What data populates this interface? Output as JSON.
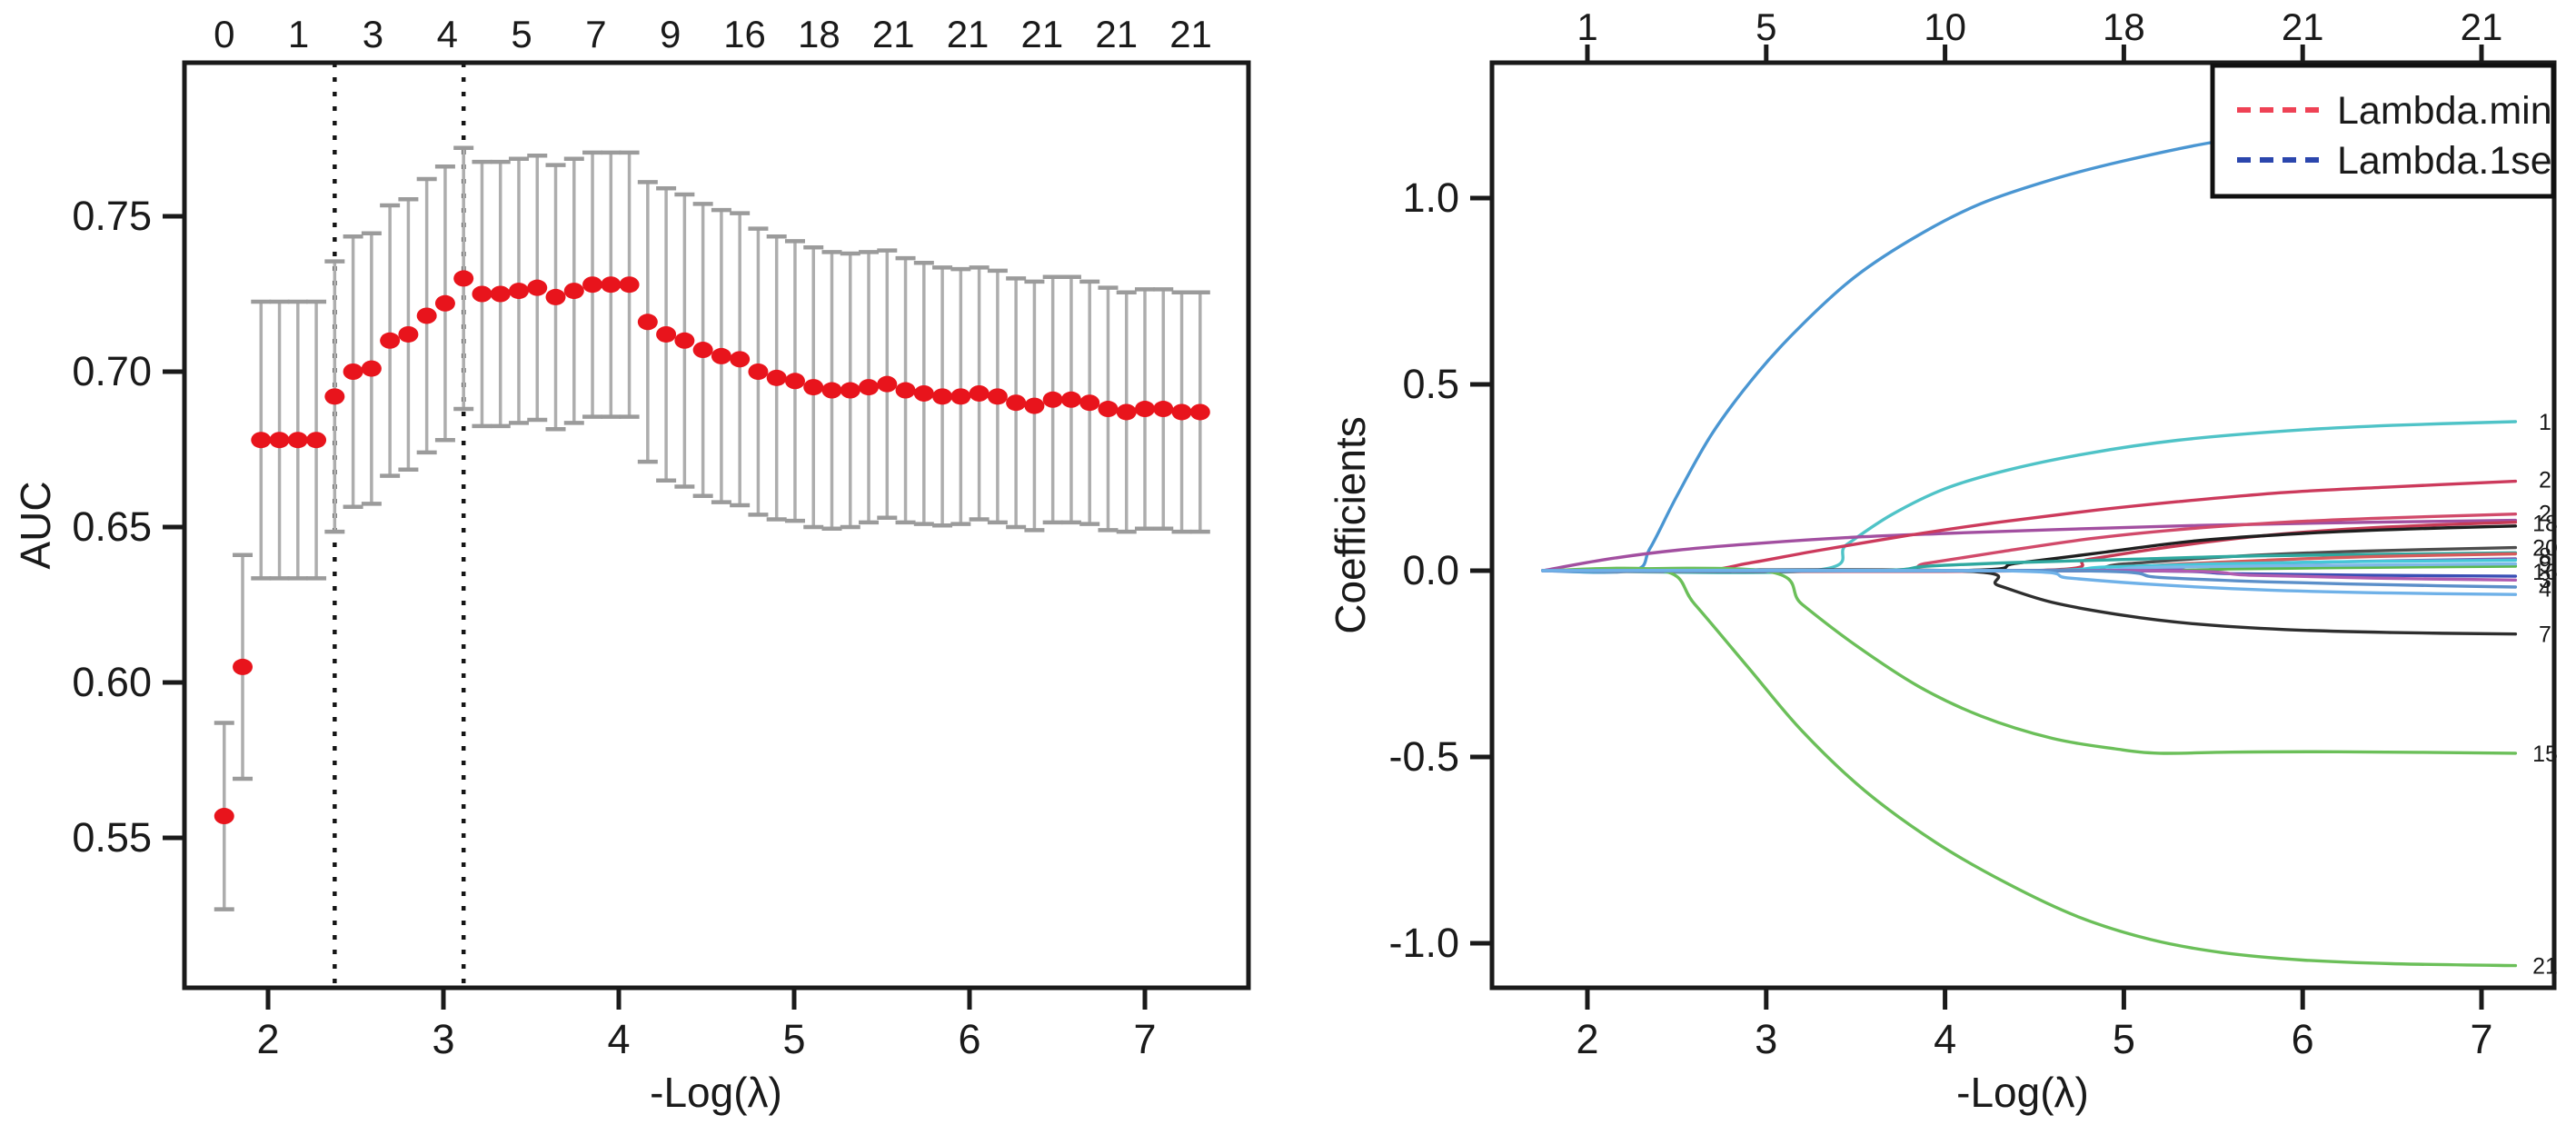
{
  "figure": {
    "background": "#ffffff"
  },
  "chart_data": [
    {
      "type": "scatter",
      "subtype": "errorbar-cv-curve",
      "panel": "left",
      "title": "",
      "xlabel": "-Log(λ)",
      "ylabel": "AUC",
      "x_ticks": [
        "2",
        "3",
        "4",
        "5",
        "6",
        "7"
      ],
      "x_tick_values": [
        2,
        3,
        4,
        5,
        6,
        7
      ],
      "y_ticks": [
        "0.55",
        "0.60",
        "0.65",
        "0.70",
        "0.75"
      ],
      "y_tick_values": [
        0.55,
        0.6,
        0.65,
        0.7,
        0.75
      ],
      "xlim": [
        1.52,
        7.6
      ],
      "ylim": [
        0.5015,
        0.799
      ],
      "top_axis_labels": [
        "0",
        "1",
        "3",
        "4",
        "5",
        "7",
        "9",
        "16",
        "18",
        "21",
        "21",
        "21",
        "21",
        "21"
      ],
      "top_axis_label_x": [
        1.75,
        2.174,
        2.598,
        3.022,
        3.446,
        3.87,
        4.294,
        4.718,
        5.142,
        5.566,
        5.99,
        6.414,
        6.838,
        7.262
      ],
      "vline_min_x": 2.38,
      "vline_1se_x": 3.115,
      "x_start": 1.75,
      "x_step": 0.105,
      "auc": [
        0.557,
        0.605,
        0.678,
        0.678,
        0.678,
        0.678,
        0.692,
        0.7,
        0.701,
        0.71,
        0.712,
        0.718,
        0.722,
        0.73,
        0.725,
        0.725,
        0.726,
        0.727,
        0.724,
        0.726,
        0.728,
        0.728,
        0.728,
        0.716,
        0.712,
        0.71,
        0.707,
        0.705,
        0.704,
        0.7,
        0.698,
        0.697,
        0.695,
        0.694,
        0.694,
        0.695,
        0.696,
        0.694,
        0.693,
        0.692,
        0.692,
        0.693,
        0.692,
        0.69,
        0.689,
        0.691,
        0.691,
        0.69,
        0.688,
        0.687,
        0.688,
        0.688,
        0.687,
        0.687
      ],
      "se": [
        0.03,
        0.036,
        0.0445,
        0.0445,
        0.0445,
        0.0445,
        0.0435,
        0.0435,
        0.0435,
        0.0435,
        0.0435,
        0.044,
        0.044,
        0.042,
        0.0425,
        0.0425,
        0.0425,
        0.0425,
        0.0425,
        0.0425,
        0.0425,
        0.0425,
        0.0425,
        0.045,
        0.047,
        0.047,
        0.047,
        0.047,
        0.047,
        0.046,
        0.0455,
        0.045,
        0.045,
        0.0445,
        0.044,
        0.0435,
        0.043,
        0.0425,
        0.042,
        0.0415,
        0.041,
        0.0405,
        0.0405,
        0.04,
        0.04,
        0.0395,
        0.0395,
        0.039,
        0.039,
        0.0385,
        0.0385,
        0.0385,
        0.0385,
        0.0385
      ],
      "point_color": "#e8141c",
      "errorbar_color": "#adadad",
      "cap_color": "#9b9b9b",
      "vline_color": "#151515",
      "grid": "off"
    },
    {
      "type": "line",
      "subtype": "coefficient-paths",
      "panel": "right",
      "title": "",
      "xlabel": "-Log(λ)",
      "ylabel": "Coefficients",
      "x_ticks": [
        "2",
        "3",
        "4",
        "5",
        "6",
        "7"
      ],
      "x_tick_values": [
        2,
        3,
        4,
        5,
        6,
        7
      ],
      "y_ticks": [
        "-1.0",
        "-0.5",
        "0.0",
        "0.5",
        "1.0"
      ],
      "y_tick_values": [
        -1.0,
        -0.5,
        0.0,
        0.5,
        1.0
      ],
      "xlim": [
        1.47,
        7.4
      ],
      "ylim": [
        -1.12,
        1.363
      ],
      "top_axis_labels": [
        "1",
        "5",
        "10",
        "18",
        "21",
        "21"
      ],
      "top_axis_label_x": [
        2,
        3,
        4,
        5,
        6,
        7
      ],
      "legend": {
        "position": "top-right",
        "items": [
          {
            "label": "Lambda.min",
            "color": "#ef4255",
            "dash": true
          },
          {
            "label": "Lambda.1se",
            "color": "#2b46ad",
            "dash": true
          }
        ]
      },
      "right_edge_labels": [
        {
          "text": "1",
          "y": 0.4
        },
        {
          "text": "2",
          "y": 0.245
        },
        {
          "text": "2",
          "y": 0.155
        },
        {
          "text": "18",
          "y": 0.128
        },
        {
          "text": "20",
          "y": 0.062
        },
        {
          "text": "8",
          "y": 0.04
        },
        {
          "text": "9",
          "y": 0.018
        },
        {
          "text": "16",
          "y": -0.002
        },
        {
          "text": "3",
          "y": -0.024
        },
        {
          "text": "4",
          "y": -0.048
        },
        {
          "text": "7",
          "y": -0.17
        },
        {
          "text": "15",
          "y": -0.49
        },
        {
          "text": "21",
          "y": -1.06
        }
      ],
      "series": [
        {
          "name": "s1-blue",
          "color": "#4a96d2",
          "points": [
            [
              1.75,
              0
            ],
            [
              2.25,
              0
            ],
            [
              2.35,
              0.06
            ],
            [
              2.5,
              0.2
            ],
            [
              2.7,
              0.37
            ],
            [
              2.95,
              0.53
            ],
            [
              3.2,
              0.66
            ],
            [
              3.5,
              0.79
            ],
            [
              3.85,
              0.9
            ],
            [
              4.2,
              0.985
            ],
            [
              4.6,
              1.05
            ],
            [
              5.0,
              1.1
            ],
            [
              5.5,
              1.15
            ],
            [
              6.0,
              1.18
            ],
            [
              6.5,
              1.195
            ],
            [
              7.19,
              1.205
            ]
          ]
        },
        {
          "name": "s2-cyan",
          "color": "#4fc3c7",
          "points": [
            [
              1.75,
              0
            ],
            [
              3.25,
              0
            ],
            [
              3.45,
              0.07
            ],
            [
              3.7,
              0.15
            ],
            [
              4.0,
              0.22
            ],
            [
              4.35,
              0.27
            ],
            [
              4.8,
              0.315
            ],
            [
              5.3,
              0.35
            ],
            [
              5.9,
              0.375
            ],
            [
              6.5,
              0.39
            ],
            [
              7.19,
              0.4
            ]
          ]
        },
        {
          "name": "s3-magenta",
          "color": "#a24fa0",
          "points": [
            [
              1.75,
              0
            ],
            [
              2.1,
              0.03
            ],
            [
              2.5,
              0.055
            ],
            [
              3.0,
              0.075
            ],
            [
              3.5,
              0.09
            ],
            [
              4.0,
              0.1
            ],
            [
              4.6,
              0.11
            ],
            [
              5.3,
              0.12
            ],
            [
              6.1,
              0.128
            ],
            [
              7.19,
              0.135
            ]
          ]
        },
        {
          "name": "s4-crimson",
          "color": "#cc3a5c",
          "points": [
            [
              1.75,
              0
            ],
            [
              2.6,
              0
            ],
            [
              2.9,
              0.02
            ],
            [
              3.3,
              0.055
            ],
            [
              3.8,
              0.095
            ],
            [
              4.3,
              0.13
            ],
            [
              4.8,
              0.16
            ],
            [
              5.3,
              0.185
            ],
            [
              5.9,
              0.21
            ],
            [
              6.5,
              0.225
            ],
            [
              7.19,
              0.24
            ]
          ]
        },
        {
          "name": "s5-crimson",
          "color": "#d14a6a",
          "points": [
            [
              1.75,
              0
            ],
            [
              3.6,
              0
            ],
            [
              3.9,
              0.02
            ],
            [
              4.3,
              0.05
            ],
            [
              4.8,
              0.085
            ],
            [
              5.3,
              0.11
            ],
            [
              5.9,
              0.13
            ],
            [
              6.5,
              0.142
            ],
            [
              7.19,
              0.152
            ]
          ]
        },
        {
          "name": "s6-crimson",
          "color": "#c63b55",
          "points": [
            [
              1.75,
              0
            ],
            [
              4.45,
              0
            ],
            [
              4.8,
              0.03
            ],
            [
              5.2,
              0.06
            ],
            [
              5.7,
              0.09
            ],
            [
              6.2,
              0.11
            ],
            [
              6.7,
              0.122
            ],
            [
              7.19,
              0.13
            ]
          ]
        },
        {
          "name": "s7-black",
          "color": "#2e2e2e",
          "points": [
            [
              1.75,
              0
            ],
            [
              4.05,
              0
            ],
            [
              4.3,
              -0.04
            ],
            [
              4.6,
              -0.085
            ],
            [
              5.0,
              -0.12
            ],
            [
              5.4,
              -0.143
            ],
            [
              5.9,
              -0.158
            ],
            [
              6.5,
              -0.166
            ],
            [
              7.19,
              -0.17
            ]
          ]
        },
        {
          "name": "s8-black",
          "color": "#1f1f1f",
          "points": [
            [
              1.75,
              0
            ],
            [
              4.05,
              0
            ],
            [
              4.4,
              0.02
            ],
            [
              4.9,
              0.05
            ],
            [
              5.4,
              0.08
            ],
            [
              6.0,
              0.1
            ],
            [
              6.6,
              0.112
            ],
            [
              7.19,
              0.12
            ]
          ]
        },
        {
          "name": "s9-gray",
          "color": "#4d4d4d",
          "points": [
            [
              1.75,
              0
            ],
            [
              4.5,
              0
            ],
            [
              5.0,
              0.018
            ],
            [
              5.6,
              0.038
            ],
            [
              6.3,
              0.052
            ],
            [
              7.19,
              0.062
            ]
          ]
        },
        {
          "name": "s10-green",
          "color": "#6bbf59",
          "points": [
            [
              1.75,
              0
            ],
            [
              2.42,
              0
            ],
            [
              2.6,
              -0.09
            ],
            [
              2.9,
              -0.26
            ],
            [
              3.2,
              -0.43
            ],
            [
              3.55,
              -0.59
            ],
            [
              3.95,
              -0.73
            ],
            [
              4.35,
              -0.84
            ],
            [
              4.75,
              -0.93
            ],
            [
              5.15,
              -0.99
            ],
            [
              5.55,
              -1.025
            ],
            [
              6.0,
              -1.045
            ],
            [
              6.5,
              -1.055
            ],
            [
              7.19,
              -1.06
            ]
          ]
        },
        {
          "name": "s11-green",
          "color": "#6bbf59",
          "points": [
            [
              1.75,
              0
            ],
            [
              2.98,
              0
            ],
            [
              3.2,
              -0.09
            ],
            [
              3.5,
              -0.2
            ],
            [
              3.85,
              -0.31
            ],
            [
              4.2,
              -0.39
            ],
            [
              4.6,
              -0.45
            ],
            [
              4.95,
              -0.478
            ],
            [
              5.2,
              -0.49
            ],
            [
              5.6,
              -0.487
            ],
            [
              6.2,
              -0.486
            ],
            [
              7.19,
              -0.49
            ]
          ]
        },
        {
          "name": "s12-green",
          "color": "#59b84d",
          "points": [
            [
              1.75,
              0
            ],
            [
              5.0,
              0
            ],
            [
              5.6,
              0.005
            ],
            [
              6.4,
              0.009
            ],
            [
              7.19,
              0.012
            ]
          ]
        },
        {
          "name": "s13-teal",
          "color": "#2fa89f",
          "points": [
            [
              1.75,
              0
            ],
            [
              3.55,
              0
            ],
            [
              3.9,
              0.012
            ],
            [
              4.4,
              0.022
            ],
            [
              5.0,
              0.03
            ],
            [
              5.8,
              0.04
            ],
            [
              7.19,
              0.048
            ]
          ]
        },
        {
          "name": "s14-red",
          "color": "#d65b5b",
          "points": [
            [
              1.75,
              0
            ],
            [
              4.75,
              0
            ],
            [
              5.2,
              0.015
            ],
            [
              5.8,
              0.028
            ],
            [
              6.4,
              0.038
            ],
            [
              7.19,
              0.045
            ]
          ]
        },
        {
          "name": "s15-purple",
          "color": "#7e57b2",
          "points": [
            [
              1.75,
              0
            ],
            [
              4.9,
              0
            ],
            [
              5.4,
              0.012
            ],
            [
              6.0,
              0.022
            ],
            [
              7.19,
              0.032
            ]
          ]
        },
        {
          "name": "s16-cyan",
          "color": "#45c8d8",
          "points": [
            [
              1.75,
              0
            ],
            [
              4.4,
              0
            ],
            [
              4.9,
              0.01
            ],
            [
              5.5,
              0.018
            ],
            [
              6.2,
              0.024
            ],
            [
              7.19,
              0.028
            ]
          ]
        },
        {
          "name": "s17-skyblue",
          "color": "#7db8e8",
          "points": [
            [
              1.75,
              0
            ],
            [
              4.6,
              0
            ],
            [
              5.1,
              0.008
            ],
            [
              5.8,
              0.013
            ],
            [
              7.19,
              0.018
            ]
          ]
        },
        {
          "name": "s18-navy",
          "color": "#3a50b5",
          "points": [
            [
              1.75,
              0
            ],
            [
              5.0,
              0
            ],
            [
              5.6,
              -0.008
            ],
            [
              6.3,
              -0.012
            ],
            [
              7.19,
              -0.015
            ]
          ]
        },
        {
          "name": "s19-magenta",
          "color": "#b05cb0",
          "points": [
            [
              1.75,
              0
            ],
            [
              5.1,
              0
            ],
            [
              5.7,
              -0.012
            ],
            [
              6.4,
              -0.02
            ],
            [
              7.19,
              -0.025
            ]
          ]
        },
        {
          "name": "s20-steel",
          "color": "#5b8fc9",
          "points": [
            [
              1.75,
              0
            ],
            [
              4.7,
              0
            ],
            [
              5.2,
              -0.018
            ],
            [
              5.8,
              -0.03
            ],
            [
              6.5,
              -0.038
            ],
            [
              7.19,
              -0.044
            ]
          ]
        },
        {
          "name": "s21-lightblue",
          "color": "#6fb1e8",
          "points": [
            [
              1.75,
              0
            ],
            [
              4.3,
              0
            ],
            [
              4.7,
              -0.02
            ],
            [
              5.2,
              -0.038
            ],
            [
              5.8,
              -0.052
            ],
            [
              6.5,
              -0.06
            ],
            [
              7.19,
              -0.064
            ]
          ]
        }
      ],
      "grid": "off"
    }
  ]
}
